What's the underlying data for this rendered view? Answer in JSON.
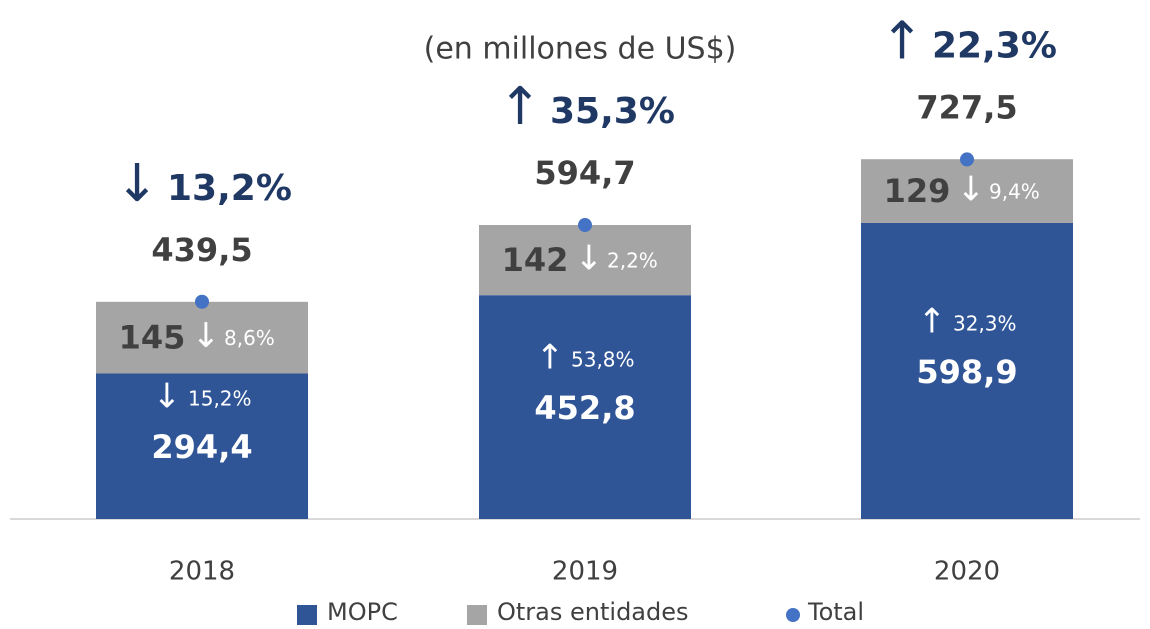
{
  "chart_data": {
    "type": "stacked_bar",
    "subtitle": "(en millones de US$)",
    "categories": [
      "2018",
      "2019",
      "2020"
    ],
    "ylim": [
      0,
      1050
    ],
    "series": [
      {
        "name": "MOPC",
        "color": "#2f5597",
        "values": [
          294.4,
          452.8,
          598.9
        ],
        "value_labels": [
          "294,4",
          "452,8",
          "598,9"
        ],
        "change_arrows": [
          "↓",
          "↑",
          "↑"
        ],
        "changes": [
          "15,2%",
          "53,8%",
          "32,3%"
        ]
      },
      {
        "name": "Otras entidades",
        "color": "#a5a5a5",
        "values": [
          145,
          142,
          129
        ],
        "change_arrows": [
          "↓",
          "↓",
          "↓"
        ],
        "changes": [
          "8,6%",
          "2,2%",
          "9,4%"
        ]
      },
      {
        "name": "Total",
        "type": "point",
        "color": "#4472c4",
        "values": [
          439.5,
          594.7,
          727.5
        ],
        "value_labels": [
          "439,5",
          "594,7",
          "727,5"
        ],
        "change_arrows": [
          "↓",
          "↑",
          "↑"
        ],
        "changes": [
          "13,2%",
          "35,3%",
          "22,3%"
        ]
      }
    ]
  }
}
